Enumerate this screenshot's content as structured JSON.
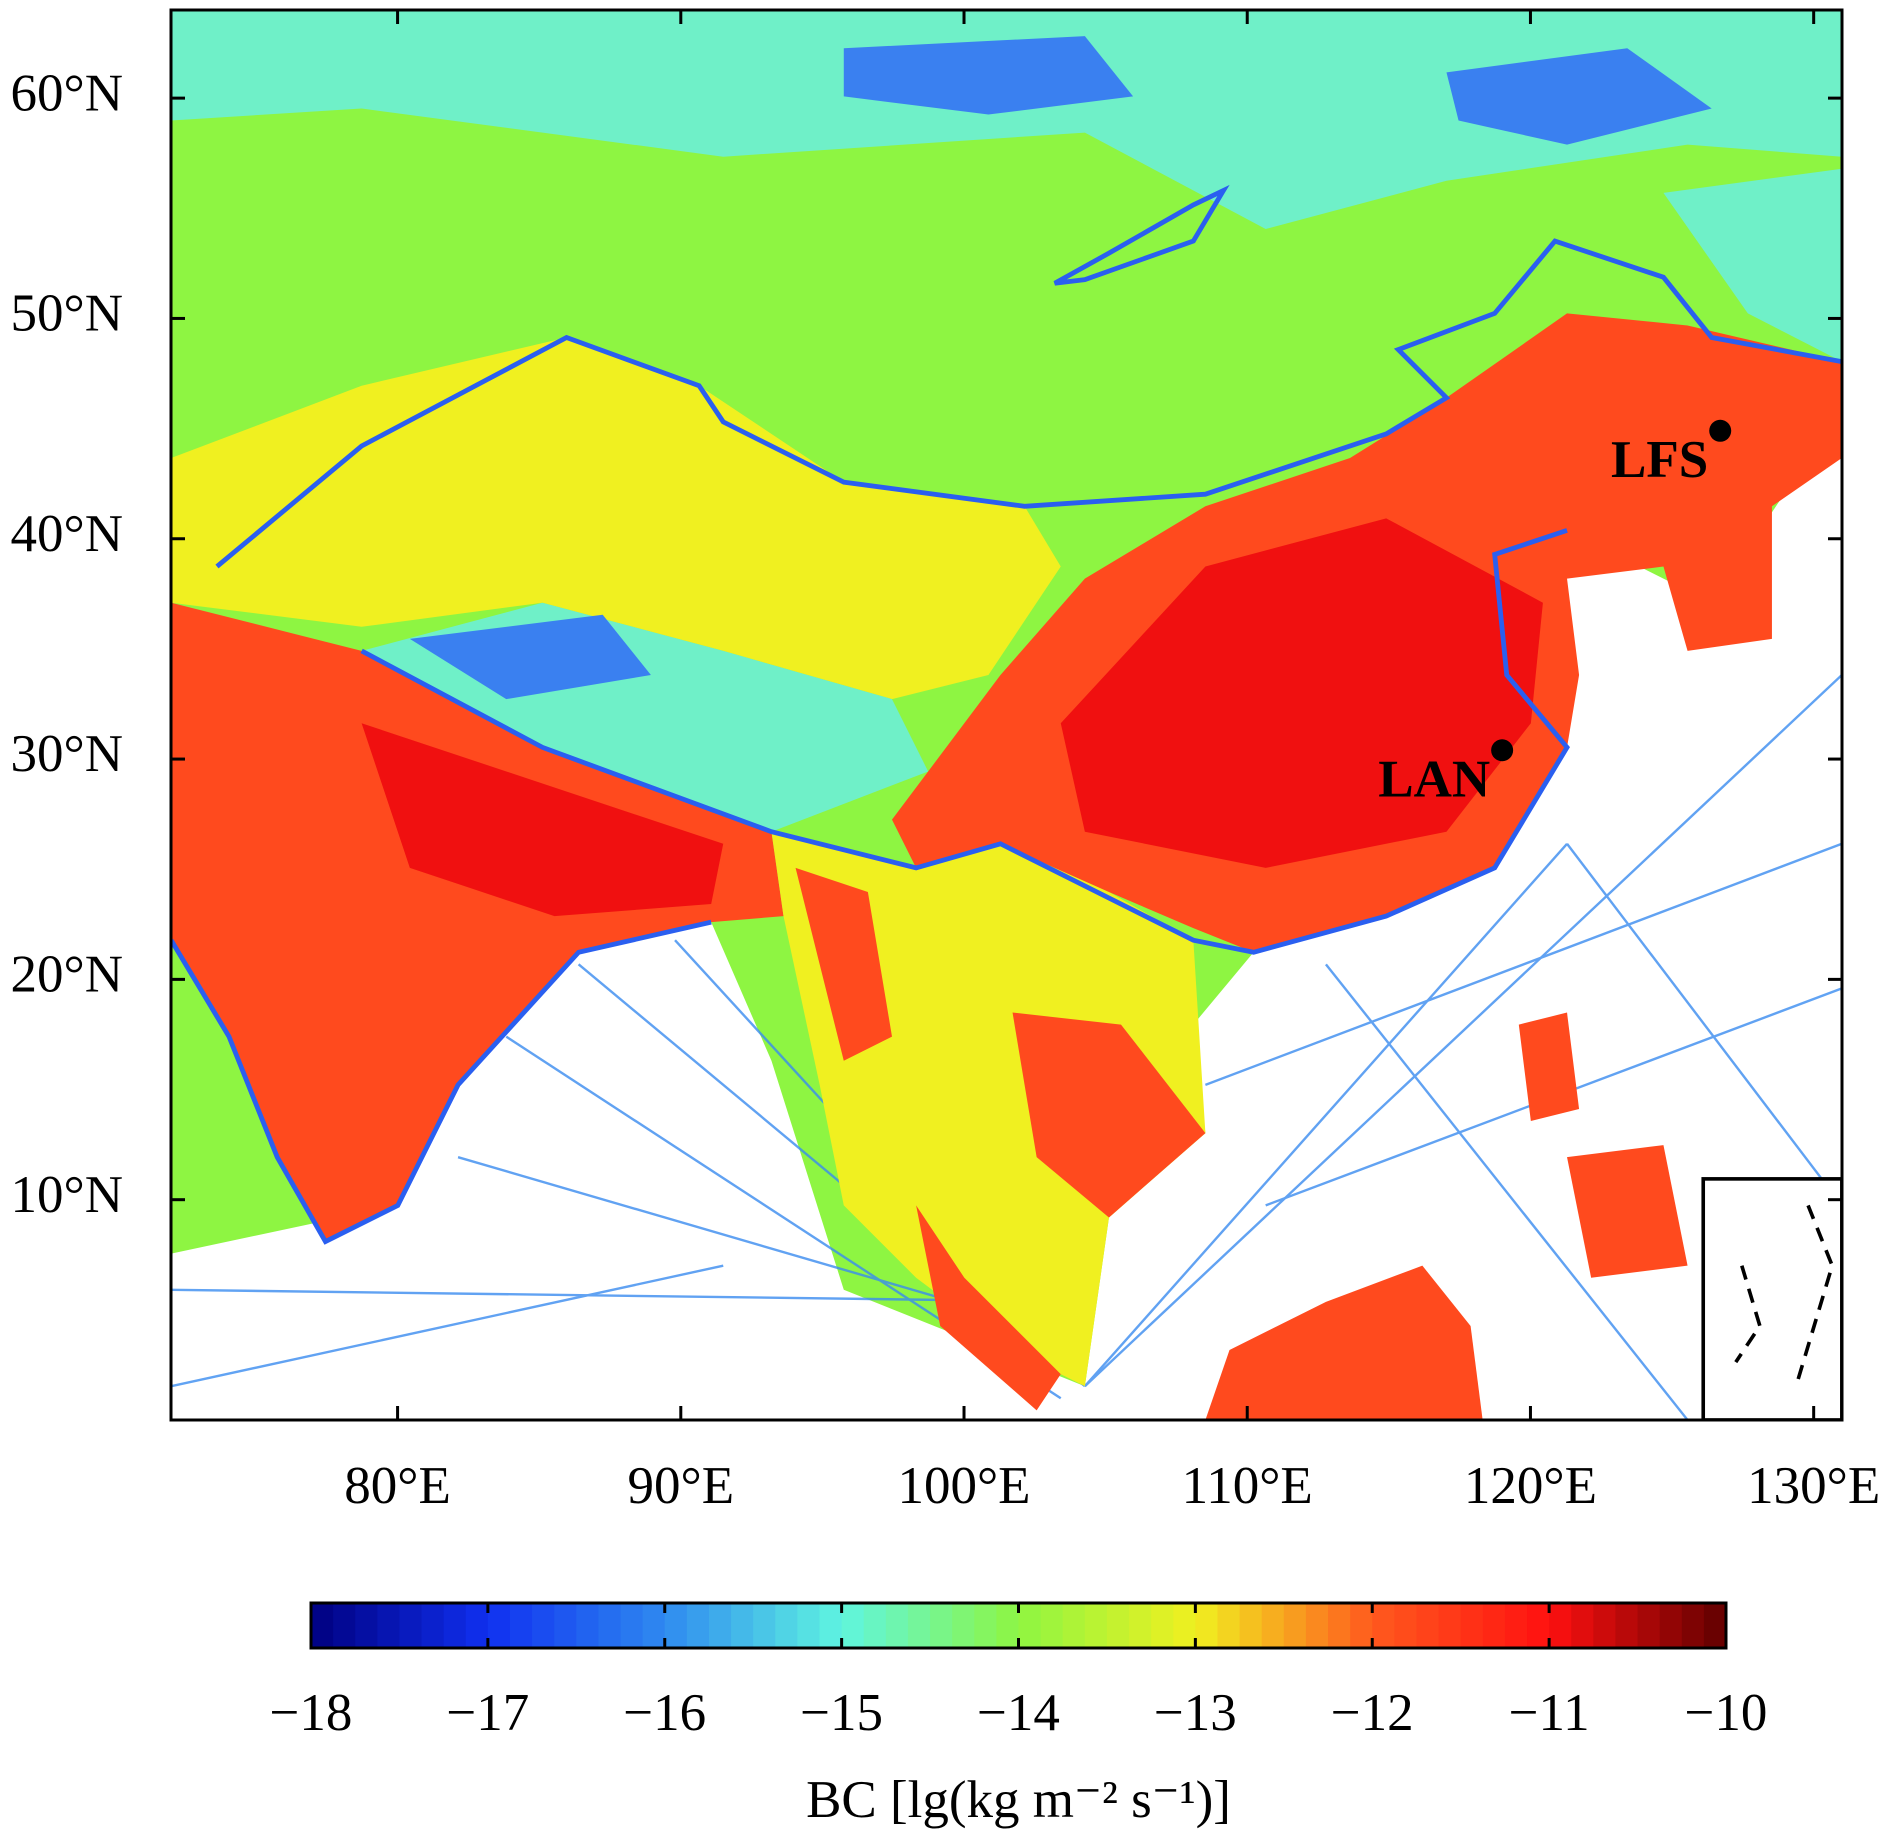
{
  "chart_data": {
    "type": "map",
    "xlim": [
      72,
      131
    ],
    "ylim": [
      0,
      64
    ],
    "xticks": [
      {
        "value": 80,
        "label": "80°E"
      },
      {
        "value": 90,
        "label": "90°E"
      },
      {
        "value": 100,
        "label": "100°E"
      },
      {
        "value": 110,
        "label": "110°E"
      },
      {
        "value": 120,
        "label": "120°E"
      },
      {
        "value": 130,
        "label": "130°E"
      }
    ],
    "yticks": [
      {
        "value": 10,
        "label": "10°N"
      },
      {
        "value": 20,
        "label": "20°N"
      },
      {
        "value": 30,
        "label": "30°N"
      },
      {
        "value": 40,
        "label": "40°N"
      },
      {
        "value": 50,
        "label": "50°N"
      },
      {
        "value": 60,
        "label": "60°N"
      }
    ],
    "points": [
      {
        "name": "LFS",
        "lon": 126.7,
        "lat": 44.9,
        "color": "#000000"
      },
      {
        "name": "LAN",
        "lon": 119.0,
        "lat": 30.4,
        "color": "#000000"
      }
    ],
    "colorbar": {
      "label": "BC [lg(kg m⁻² s⁻¹)]",
      "lim": [
        -18,
        -10
      ],
      "ticks": [
        {
          "value": -18,
          "label": "−18"
        },
        {
          "value": -17,
          "label": "−17"
        },
        {
          "value": -16,
          "label": "−16"
        },
        {
          "value": -15,
          "label": "−15"
        },
        {
          "value": -14,
          "label": "−14"
        },
        {
          "value": -13,
          "label": "−13"
        },
        {
          "value": -12,
          "label": "−12"
        },
        {
          "value": -11,
          "label": "−11"
        },
        {
          "value": -10,
          "label": "−10"
        }
      ],
      "colormap": [
        "#000080",
        "#1030f0",
        "#2f8af0",
        "#5ff5e0",
        "#8ef542",
        "#f0f020",
        "#ff5a1e",
        "#ff1010",
        "#600000"
      ],
      "levels": 64
    }
  }
}
